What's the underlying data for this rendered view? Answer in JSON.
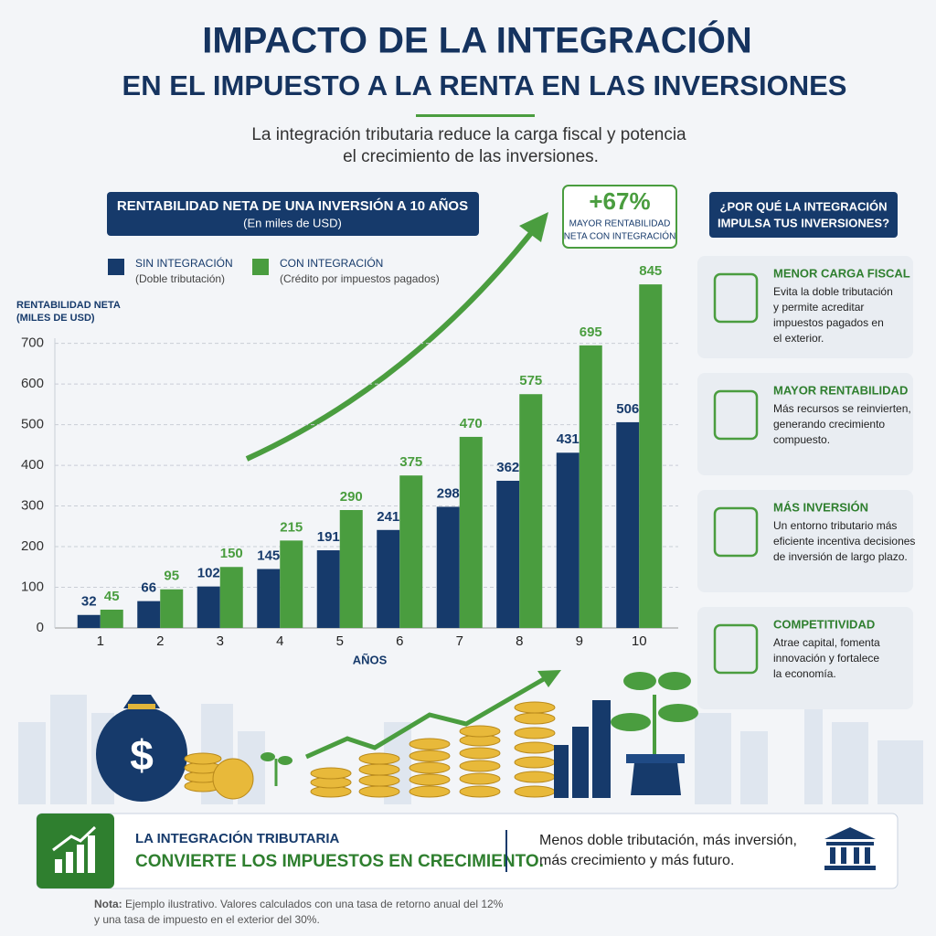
{
  "header": {
    "title": [
      "IMPACTO DE LA INTEGRACIÓN",
      "EN EL IMPUESTO A LA RENTA EN LAS INVERSIONES"
    ],
    "subtitle": [
      "La integración tributaria reduce la carga fiscal y potencia",
      "el crecimiento de las inversiones."
    ]
  },
  "chart_data": {
    "type": "bar",
    "title": "RENTABILIDAD NETA DE UNA INVERSIÓN A 10 AÑOS",
    "subtitle": "(En miles de USD)",
    "ylabel": [
      "RENTABILIDAD NETA",
      "(MILES DE USD)"
    ],
    "xlabel": "AÑOS",
    "categories": [
      "1",
      "2",
      "3",
      "4",
      "5",
      "6",
      "7",
      "8",
      "9",
      "10"
    ],
    "series": [
      {
        "name": "SIN INTEGRACIÓN",
        "description": "(Doble tributación)",
        "color": "#163a6b",
        "values": [
          32,
          66,
          102,
          145,
          191,
          241,
          298,
          362,
          431,
          506
        ]
      },
      {
        "name": "CON INTEGRACIÓN",
        "description": "(Crédito por impuestos pagados)",
        "color": "#4a9d3f",
        "values": [
          45,
          95,
          150,
          215,
          290,
          375,
          470,
          575,
          695,
          845
        ]
      }
    ],
    "ylim": [
      0,
      870
    ],
    "yticks": [
      0,
      100,
      200,
      300,
      400,
      500,
      600,
      700
    ],
    "grid": true,
    "annotation": {
      "highlight": "+67%",
      "text": [
        "MAYOR RENTABILIDAD",
        "NETA CON INTEGRACIÓN"
      ]
    }
  },
  "sidebar": {
    "title": [
      "¿POR QUÉ LA INTEGRACIÓN",
      "IMPULSA TUS INVERSIONES?"
    ],
    "items": [
      {
        "title": "MENOR CARGA FISCAL",
        "text": [
          "Evita la doble tributación",
          "y permite acreditar",
          "impuestos pagados en",
          "el exterior."
        ]
      },
      {
        "title": "MAYOR RENTABILIDAD",
        "text": [
          "Más recursos se reinvierten,",
          "generando crecimiento",
          "compuesto."
        ]
      },
      {
        "title": "MÁS INVERSIÓN",
        "text": [
          "Un entorno tributario más",
          "eficiente incentiva decisiones",
          "de inversión de largo plazo."
        ]
      },
      {
        "title": "COMPETITIVIDAD",
        "text": [
          "Atrae capital, fomenta",
          "innovación y fortalece",
          "la economía."
        ]
      }
    ]
  },
  "footer": {
    "lead": "LA INTEGRACIÓN TRIBUTARIA",
    "headline": "CONVIERTE LOS IMPUESTOS EN CRECIMIENTO.",
    "message": [
      "Menos doble tributación, más inversión,",
      "más crecimiento y más futuro."
    ]
  },
  "note": {
    "label": "Nota:",
    "lines": [
      "Ejemplo ilustrativo. Valores calculados con una tasa de retorno anual del 12%",
      "y una tasa de impuesto en el exterior del 30%."
    ]
  }
}
